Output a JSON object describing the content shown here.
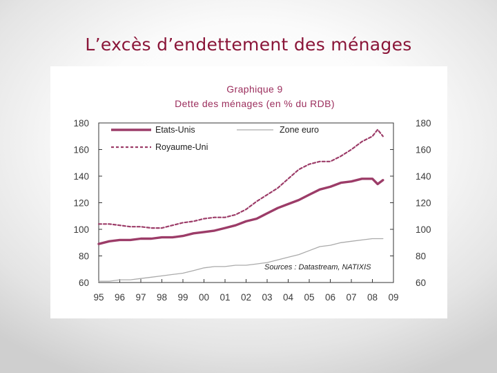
{
  "slide": {
    "title": "L’excès d’endettement des ménages"
  },
  "chart_data": {
    "type": "line",
    "title": "Graphique 9",
    "subtitle": "Dette des ménages (en % du RDB)",
    "xlabel": "",
    "ylabel": "",
    "xlim": [
      1995,
      2009
    ],
    "ylim": [
      60,
      180
    ],
    "yticks": [
      60,
      80,
      100,
      120,
      140,
      160,
      180
    ],
    "xtick_values": [
      1995,
      1996,
      1997,
      1998,
      1999,
      2000,
      2001,
      2002,
      2003,
      2004,
      2005,
      2006,
      2007,
      2008,
      2009
    ],
    "xtick_labels": [
      "95",
      "96",
      "97",
      "98",
      "99",
      "00",
      "01",
      "02",
      "03",
      "04",
      "05",
      "06",
      "07",
      "08",
      "09"
    ],
    "legend_position": "top",
    "source": "Sources : Datastream, NATIXIS",
    "series": [
      {
        "name": "Etats-Unis",
        "style": "solid-thick",
        "color": "#9c3c68",
        "x": [
          1995,
          1995.5,
          1996,
          1996.5,
          1997,
          1997.5,
          1998,
          1998.5,
          1999,
          1999.5,
          2000,
          2000.5,
          2001,
          2001.5,
          2002,
          2002.5,
          2003,
          2003.5,
          2004,
          2004.5,
          2005,
          2005.5,
          2006,
          2006.5,
          2007,
          2007.5,
          2008,
          2008.25,
          2008.5
        ],
        "values": [
          89,
          91,
          92,
          92,
          93,
          93,
          94,
          94,
          95,
          97,
          98,
          99,
          101,
          103,
          106,
          108,
          112,
          116,
          119,
          122,
          126,
          130,
          132,
          135,
          136,
          138,
          138,
          134,
          137
        ]
      },
      {
        "name": "Royaume-Uni",
        "style": "dashed",
        "color": "#9c3c68",
        "x": [
          1995,
          1995.5,
          1996,
          1996.5,
          1997,
          1997.5,
          1998,
          1998.5,
          1999,
          1999.5,
          2000,
          2000.5,
          2001,
          2001.5,
          2002,
          2002.5,
          2003,
          2003.5,
          2004,
          2004.5,
          2005,
          2005.5,
          2006,
          2006.5,
          2007,
          2007.5,
          2008,
          2008.25,
          2008.5
        ],
        "values": [
          104,
          104,
          103,
          102,
          102,
          101,
          101,
          103,
          105,
          106,
          108,
          109,
          109,
          111,
          115,
          121,
          126,
          131,
          138,
          145,
          149,
          151,
          151,
          155,
          160,
          166,
          170,
          175,
          170
        ]
      },
      {
        "name": "Zone euro",
        "style": "solid-thin",
        "color": "#aaaaaa",
        "x": [
          1995,
          1995.5,
          1996,
          1996.5,
          1997,
          1997.5,
          1998,
          1998.5,
          1999,
          1999.5,
          2000,
          2000.5,
          2001,
          2001.5,
          2002,
          2002.5,
          2003,
          2003.5,
          2004,
          2004.5,
          2005,
          2005.5,
          2006,
          2006.5,
          2007,
          2007.5,
          2008,
          2008.25,
          2008.5
        ],
        "values": [
          61,
          61,
          62,
          62,
          63,
          64,
          65,
          66,
          67,
          69,
          71,
          72,
          72,
          73,
          73,
          74,
          75,
          77,
          79,
          81,
          84,
          87,
          88,
          90,
          91,
          92,
          93,
          93,
          93
        ]
      }
    ]
  }
}
